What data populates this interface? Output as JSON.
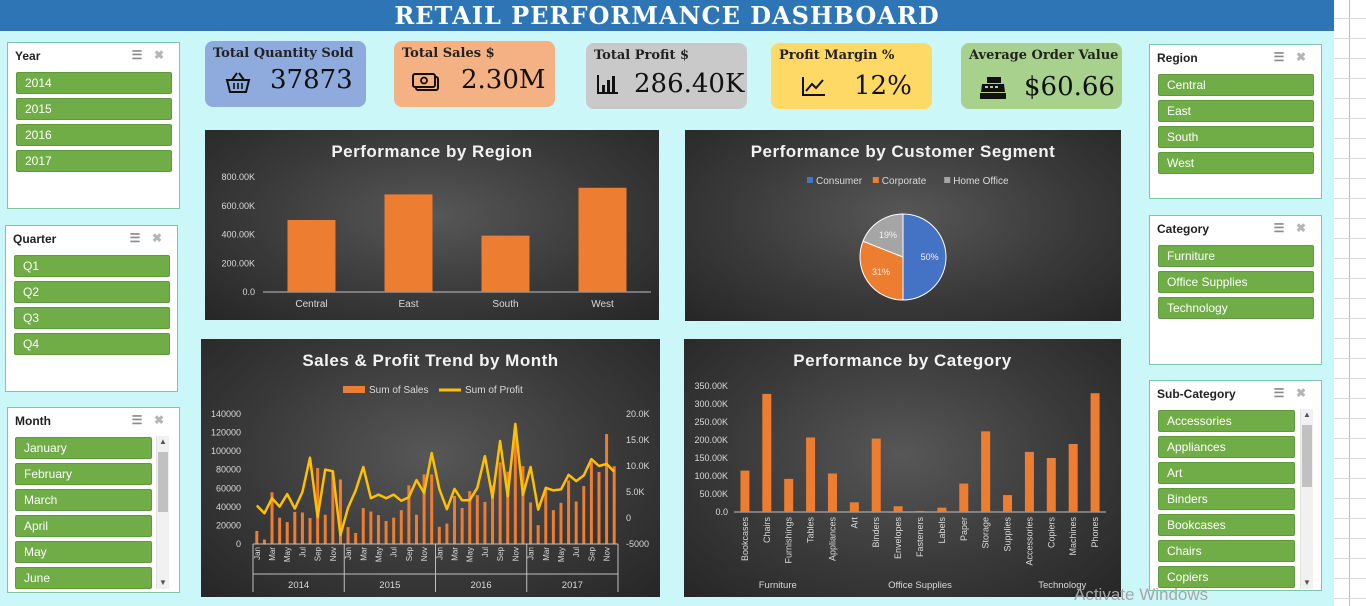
{
  "title": "RETAIL PERFORMANCE DASHBOARD",
  "watermark": "Activate Windows",
  "slicers": {
    "year": {
      "title": "Year",
      "items": [
        "2014",
        "2015",
        "2016",
        "2017"
      ]
    },
    "quarter": {
      "title": "Quarter",
      "items": [
        "Q1",
        "Q2",
        "Q3",
        "Q4"
      ]
    },
    "month": {
      "title": "Month",
      "items": [
        "January",
        "February",
        "March",
        "April",
        "May",
        "June"
      ]
    },
    "region": {
      "title": "Region",
      "items": [
        "Central",
        "East",
        "South",
        "West"
      ]
    },
    "category": {
      "title": "Category",
      "items": [
        "Furniture",
        "Office Supplies",
        "Technology"
      ]
    },
    "subcategory": {
      "title": "Sub-Category",
      "items": [
        "Accessories",
        "Appliances",
        "Art",
        "Binders",
        "Bookcases",
        "Chairs",
        "Copiers"
      ]
    }
  },
  "kpis": {
    "quantity": {
      "title": "Total Quantity Sold",
      "value": "37873",
      "icon": "basket-icon",
      "color": "#8faadc"
    },
    "sales": {
      "title": "Total Sales $",
      "value": "2.30M",
      "icon": "money-icon",
      "color": "#f4b183"
    },
    "profit": {
      "title": "Total Profit $",
      "value": "286.40K",
      "icon": "bar-chart-icon",
      "color": "#c9c9c9"
    },
    "margin": {
      "title": "Profit Margin %",
      "value": "12%",
      "icon": "line-chart-icon",
      "color": "#ffd966"
    },
    "aov": {
      "title": "Average  Order Value",
      "value": "$60.66",
      "icon": "cash-register-icon",
      "color": "#a9d18e"
    }
  },
  "chart_data": [
    {
      "id": "region",
      "type": "bar",
      "title": "Performance by Region",
      "categories": [
        "Central",
        "East",
        "South",
        "West"
      ],
      "values": [
        501000,
        679000,
        392000,
        725000
      ],
      "ylim": [
        0,
        800000
      ],
      "yticks": [
        "0.0",
        "200.00K",
        "400.00K",
        "600.00K",
        "800.00K"
      ],
      "color": "#ed7d31",
      "grid": false
    },
    {
      "id": "segment",
      "type": "pie",
      "title": "Performance by Customer Segment",
      "legend_position": "top",
      "slices": [
        {
          "name": "Consumer",
          "value": 50,
          "label": "50%",
          "color": "#4472c4"
        },
        {
          "name": "Corporate",
          "value": 31,
          "label": "31%",
          "color": "#ed7d31"
        },
        {
          "name": "Home Office",
          "value": 19,
          "label": "19%",
          "color": "#a5a5a5"
        }
      ]
    },
    {
      "id": "trend",
      "type": "bar",
      "title": "Sales & Profit Trend by Month",
      "legend_position": "top",
      "month_labels": [
        "Jan",
        "Mar",
        "May",
        "Jul",
        "Sep",
        "Nov"
      ],
      "years": [
        "2014",
        "2015",
        "2016",
        "2017"
      ],
      "y_left": {
        "ylim": [
          0,
          140000
        ],
        "ticks": [
          "0",
          "20000",
          "40000",
          "60000",
          "80000",
          "100000",
          "120000",
          "140000"
        ]
      },
      "y_right": {
        "ylim": [
          -5000,
          20000
        ],
        "ticks": [
          "-5000",
          "0",
          "5.0K",
          "10.0K",
          "15.0K",
          "20.0K"
        ]
      },
      "series": [
        {
          "name": "Sum of Sales",
          "type": "bar",
          "axis": "left",
          "color": "#ed7d31",
          "values": [
            14000,
            4800,
            55700,
            28300,
            23600,
            34600,
            33900,
            27900,
            81800,
            31500,
            78200,
            69500,
            18200,
            11900,
            38700,
            35000,
            31100,
            24800,
            28300,
            36400,
            63100,
            31500,
            75000,
            74900,
            18500,
            22000,
            51700,
            38800,
            56900,
            52600,
            45300,
            63100,
            87900,
            77900,
            118400,
            83900,
            44700,
            20300,
            58900,
            36500,
            44300,
            68400,
            45800,
            62400,
            87900,
            77600,
            118400,
            83800
          ]
        },
        {
          "name": "Sum of Profit",
          "type": "line",
          "axis": "right",
          "color": "#ffc000",
          "values": [
            2400,
            900,
            3800,
            2200,
            4600,
            1800,
            5000,
            11600,
            200,
            9300,
            9000,
            -3300,
            2000,
            5300,
            9800,
            3800,
            4500,
            3800,
            4500,
            3300,
            4000,
            7300,
            4800,
            12500,
            5600,
            1700,
            5600,
            3400,
            3400,
            5800,
            11900,
            3900,
            14800,
            4200,
            18100,
            4400,
            9800,
            1600,
            5800,
            5300,
            5500,
            8300,
            7100,
            8200,
            11300,
            10000,
            10400,
            8900
          ]
        }
      ]
    },
    {
      "id": "category",
      "type": "bar",
      "title": "Performance by Category",
      "categories": [
        "Bookcases",
        "Chairs",
        "Furnishings",
        "Tables",
        "Appliances",
        "Art",
        "Binders",
        "Envelopes",
        "Fasteners",
        "Labels",
        "Paper",
        "Storage",
        "Supplies",
        "Accessories",
        "Copiers",
        "Machines",
        "Phones"
      ],
      "groups": [
        "Furniture",
        "Office Supplies",
        "Technology"
      ],
      "values": [
        115000,
        328000,
        92000,
        207000,
        107000,
        27000,
        204000,
        16000,
        3000,
        12000,
        79000,
        224000,
        47000,
        167000,
        150000,
        189000,
        330000
      ],
      "ylim": [
        0,
        350000
      ],
      "yticks": [
        "0.0",
        "50.00K",
        "100.00K",
        "150.00K",
        "200.00K",
        "250.00K",
        "300.00K",
        "350.00K"
      ],
      "color": "#ed7d31",
      "grid": false
    }
  ]
}
